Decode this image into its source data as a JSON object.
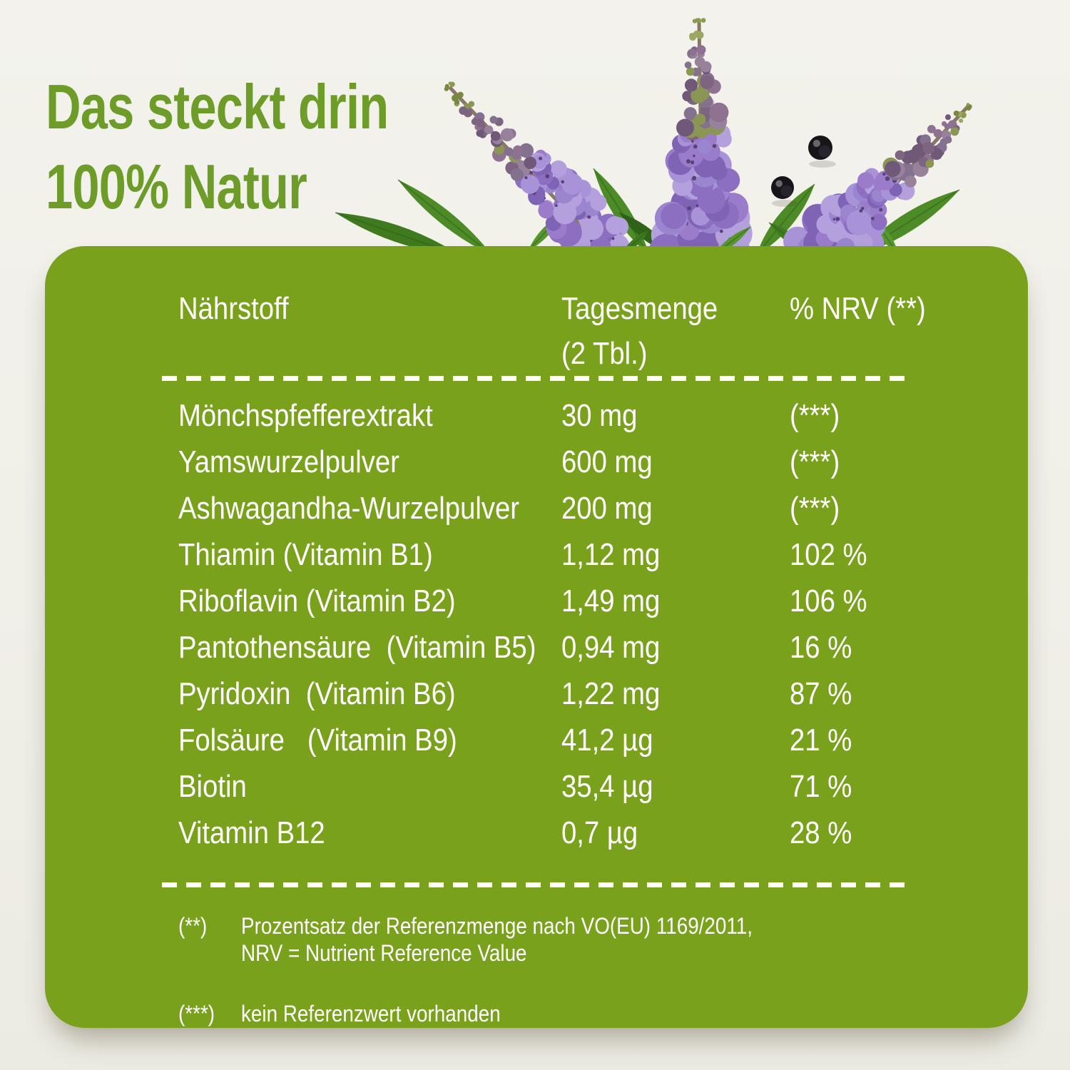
{
  "title": {
    "line1": "Das steckt drin",
    "line2": "100% Natur"
  },
  "table": {
    "headers": {
      "col1": "Nährstoff",
      "col2_line1": "Tagesmenge",
      "col2_line2": "(2 Tbl.)",
      "col3": "% NRV (**)"
    },
    "rows": [
      {
        "name": "Mönchspfefferextrakt",
        "amount": "30 mg",
        "nrv": "(***)"
      },
      {
        "name": "Yamswurzelpulver",
        "amount": "600 mg",
        "nrv": "(***)"
      },
      {
        "name": "Ashwagandha-Wurzelpulver",
        "amount": "200 mg",
        "nrv": "(***)"
      },
      {
        "name": "Thiamin (Vitamin B1)",
        "amount": "1,12 mg",
        "nrv": "102 %"
      },
      {
        "name": "Riboflavin (Vitamin B2)",
        "amount": "1,49 mg",
        "nrv": "106 %"
      },
      {
        "name": "Pantothensäure  (Vitamin B5)",
        "amount": "0,94 mg",
        "nrv": "16 %"
      },
      {
        "name": "Pyridoxin  (Vitamin B6)",
        "amount": "1,22 mg",
        "nrv": "87 %"
      },
      {
        "name": "Folsäure   (Vitamin B9)",
        "amount": "41,2 µg",
        "nrv": "21 %"
      },
      {
        "name": "Biotin",
        "amount": "35,4 µg",
        "nrv": "71 %"
      },
      {
        "name": "Vitamin B12",
        "amount": "0,7 µg",
        "nrv": "28 %"
      }
    ]
  },
  "footnotes": [
    {
      "symbol": "(**)",
      "line1": "Prozentsatz der Referenzmenge nach VO(EU) 1169/2011,",
      "line2": "NRV = Nutrient Reference Value"
    },
    {
      "symbol": "(***)",
      "line1": "kein Referenzwert vorhanden",
      "line2": ""
    }
  ],
  "illustration": {
    "name": "chaste-tree-flowers-with-berries",
    "flower_spikes": 3,
    "berries": 2
  },
  "colors": {
    "background": "#f1f0e9",
    "panel_green": "#7aa11c",
    "title_green": "#6d9c28",
    "table_text": "#ffffff",
    "flower_purple": "#9077c6",
    "leaf_green": "#4a8a23",
    "berry_black": "#17141a"
  }
}
